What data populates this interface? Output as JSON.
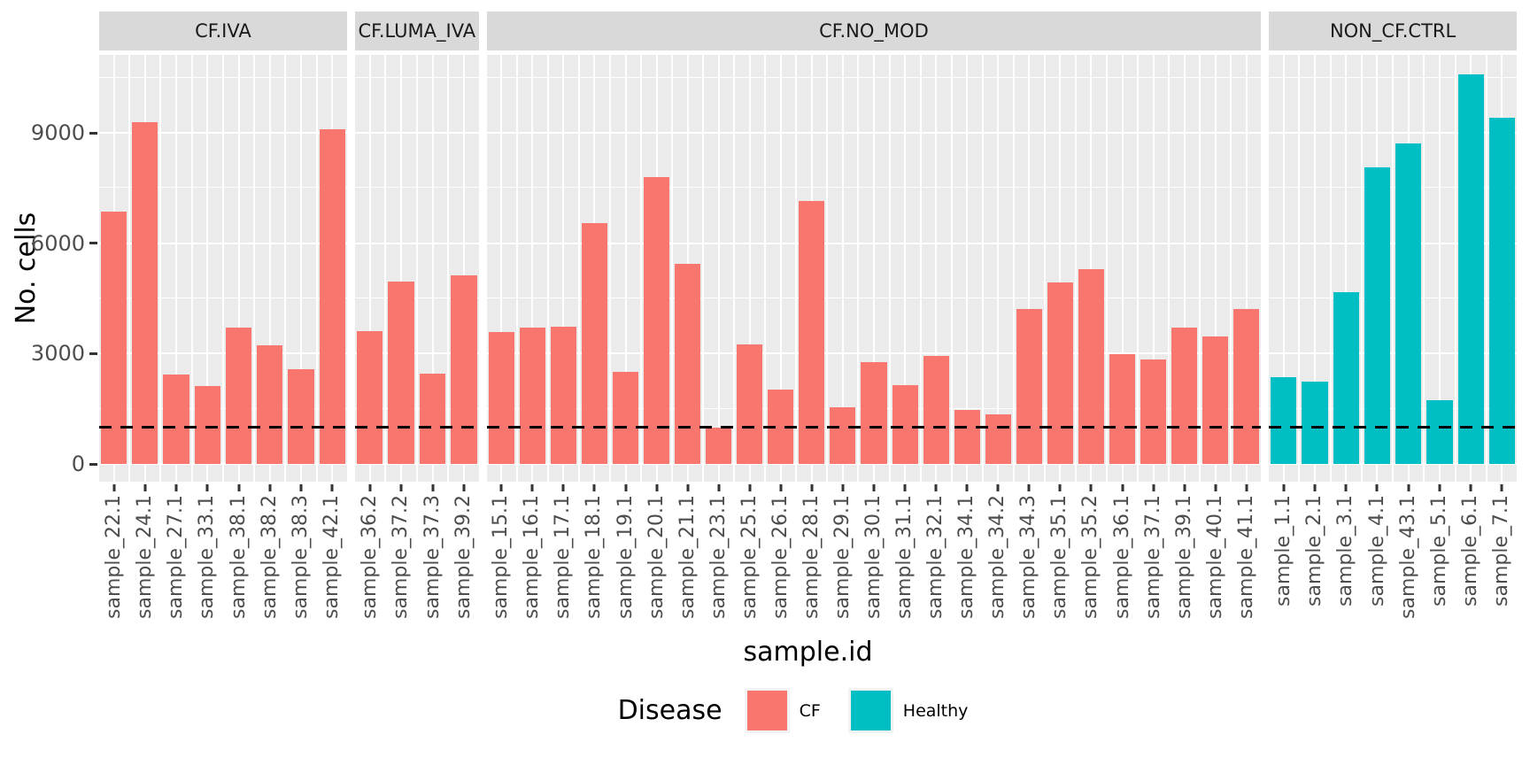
{
  "chart_data": {
    "type": "bar",
    "title": "",
    "xlabel": "sample.id",
    "ylabel": "No. cells",
    "grid": true,
    "y_ticks": [
      0,
      3000,
      6000,
      9000
    ],
    "y_minor_gridlines": [
      1500,
      4500,
      7500,
      10500
    ],
    "ylim_display": [
      -480,
      11120
    ],
    "hline": {
      "y": 1000,
      "style": "dashed",
      "color": "#000000"
    },
    "panel_bg": "#ebebeb",
    "strip_bg": "#d9d9d9",
    "legend": {
      "title": "Disease",
      "position": "bottom",
      "entries": [
        {
          "label": "CF",
          "color": "#F8766D"
        },
        {
          "label": "Healthy",
          "color": "#00BFC4"
        }
      ]
    },
    "facets": [
      {
        "label": "CF.IVA",
        "group": "CF",
        "samples": [
          "sample_22.1",
          "sample_24.1",
          "sample_27.1",
          "sample_33.1",
          "sample_38.1",
          "sample_38.2",
          "sample_38.3",
          "sample_42.1"
        ],
        "values": [
          6850,
          9280,
          2440,
          2110,
          3710,
          3220,
          2580,
          9110
        ]
      },
      {
        "label": "CF.LUMA_IVA",
        "group": "CF",
        "samples": [
          "sample_36.2",
          "sample_37.2",
          "sample_37.3",
          "sample_39.2"
        ],
        "values": [
          3620,
          4950,
          2450,
          5140
        ]
      },
      {
        "label": "CF.NO_MOD",
        "group": "CF",
        "samples": [
          "sample_15.1",
          "sample_16.1",
          "sample_17.1",
          "sample_18.1",
          "sample_19.1",
          "sample_20.1",
          "sample_21.1",
          "sample_23.1",
          "sample_25.1",
          "sample_26.1",
          "sample_28.1",
          "sample_29.1",
          "sample_30.1",
          "sample_31.1",
          "sample_32.1",
          "sample_34.1",
          "sample_34.2",
          "sample_34.3",
          "sample_35.1",
          "sample_35.2",
          "sample_36.1",
          "sample_37.1",
          "sample_39.1",
          "sample_40.1",
          "sample_41.1"
        ],
        "values": [
          3590,
          3700,
          3740,
          6540,
          2500,
          7800,
          5440,
          990,
          3260,
          2020,
          7150,
          1540,
          2780,
          2140,
          2950,
          1460,
          1340,
          4220,
          4940,
          5300,
          2980,
          2830,
          3700,
          3470,
          4220
        ]
      },
      {
        "label": "NON_CF.CTRL",
        "group": "Healthy",
        "samples": [
          "sample_1.1",
          "sample_2.1",
          "sample_3.1",
          "sample_4.1",
          "sample_43.1",
          "sample_5.1",
          "sample_6.1",
          "sample_7.1"
        ],
        "values": [
          2350,
          2230,
          4670,
          8060,
          8710,
          1740,
          10600,
          9400
        ]
      }
    ],
    "colors": {
      "CF": "#F8766D",
      "Healthy": "#00BFC4"
    }
  }
}
